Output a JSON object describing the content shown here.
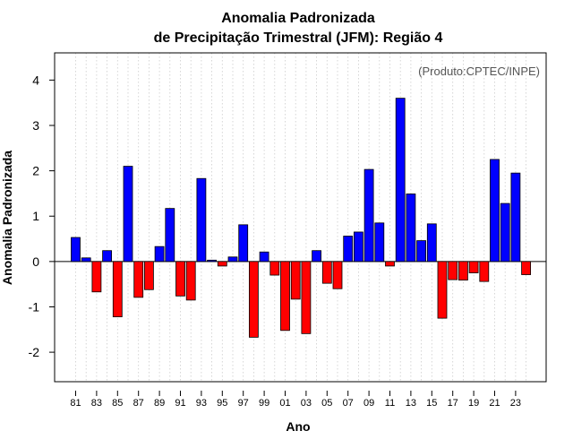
{
  "chart_data": {
    "type": "bar",
    "title": [
      "Anomalia Padronizada",
      "de Precipitação Trimestral (JFM): Região 4"
    ],
    "xlabel": "Ano",
    "ylabel": "Anomalia Padronizada",
    "annotation": "(Produto:CPTEC/INPE)",
    "ylim": [
      -2.65,
      4.6
    ],
    "yticks": [
      -2,
      -1,
      0,
      1,
      2,
      3,
      4
    ],
    "grid": true,
    "colors": {
      "positive": "#0000ff",
      "negative": "#ff0000",
      "border": "#000000",
      "grid": "#cccccc"
    },
    "x_tick_labels": [
      "81",
      "83",
      "85",
      "87",
      "89",
      "91",
      "93",
      "95",
      "97",
      "99",
      "01",
      "03",
      "05",
      "07",
      "09",
      "11",
      "13",
      "15",
      "17",
      "19",
      "21",
      "23"
    ],
    "categories": [
      "1981",
      "1982",
      "1983",
      "1984",
      "1985",
      "1986",
      "1987",
      "1988",
      "1989",
      "1990",
      "1991",
      "1992",
      "1993",
      "1994",
      "1995",
      "1996",
      "1997",
      "1998",
      "1999",
      "2000",
      "2001",
      "2002",
      "2003",
      "2004",
      "2005",
      "2006",
      "2007",
      "2008",
      "2009",
      "2010",
      "2011",
      "2012",
      "2013",
      "2014",
      "2015",
      "2016",
      "2017",
      "2018",
      "2019",
      "2020",
      "2021",
      "2022",
      "2023",
      "2024"
    ],
    "values": [
      0.53,
      0.08,
      -0.67,
      0.24,
      -1.22,
      2.1,
      -0.79,
      -0.62,
      0.33,
      1.17,
      -0.76,
      -0.85,
      1.83,
      0.03,
      -0.1,
      0.1,
      0.81,
      -1.67,
      0.21,
      -0.3,
      -1.52,
      -0.83,
      -1.59,
      0.24,
      -0.48,
      -0.6,
      0.56,
      0.65,
      2.03,
      0.85,
      -0.1,
      3.6,
      1.49,
      0.46,
      0.83,
      -1.25,
      -0.4,
      -0.41,
      -0.25,
      -0.44,
      2.25,
      1.28,
      1.95,
      -0.29
    ]
  }
}
